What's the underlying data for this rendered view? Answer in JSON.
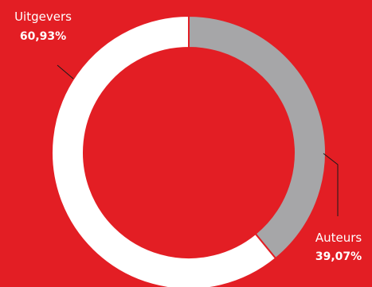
{
  "chart_data": {
    "type": "pie",
    "donut": true,
    "categories": [
      "Uitgevers",
      "Auteurs"
    ],
    "values": [
      60.93,
      39.07
    ],
    "labels": [
      "60,93%",
      "39,07%"
    ],
    "colors": [
      "#ffffff",
      "#a6a6a8"
    ],
    "background": "#e31e24"
  }
}
